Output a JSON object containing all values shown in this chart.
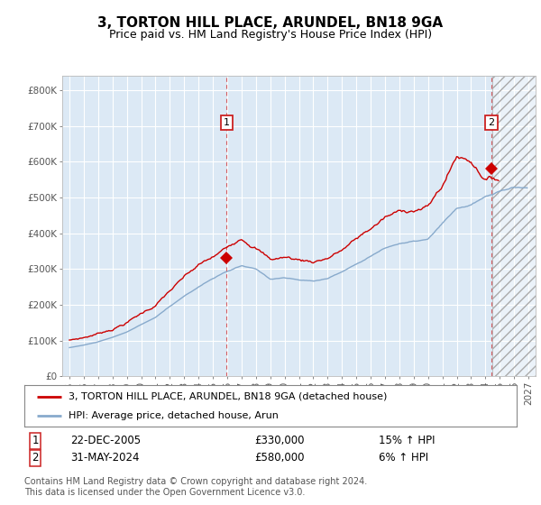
{
  "title": "3, TORTON HILL PLACE, ARUNDEL, BN18 9GA",
  "subtitle": "Price paid vs. HM Land Registry's House Price Index (HPI)",
  "ylabel_ticks": [
    "£0",
    "£100K",
    "£200K",
    "£300K",
    "£400K",
    "£500K",
    "£600K",
    "£700K",
    "£800K"
  ],
  "ytick_values": [
    0,
    100000,
    200000,
    300000,
    400000,
    500000,
    600000,
    700000,
    800000
  ],
  "ylim": [
    0,
    840000
  ],
  "xlim_start": 1994.5,
  "xlim_end": 2027.5,
  "hatch_start": 2024.5,
  "bg_color": "#dce9f5",
  "grid_color": "#ffffff",
  "sale1_x": 2005.97,
  "sale1_y": 330000,
  "sale1_label": "1",
  "sale1_date": "22-DEC-2005",
  "sale1_price": "£330,000",
  "sale1_hpi": "15% ↑ HPI",
  "sale2_x": 2024.42,
  "sale2_y": 580000,
  "sale2_label": "2",
  "sale2_date": "31-MAY-2024",
  "sale2_price": "£580,000",
  "sale2_hpi": "6% ↑ HPI",
  "legend_line1": "3, TORTON HILL PLACE, ARUNDEL, BN18 9GA (detached house)",
  "legend_line2": "HPI: Average price, detached house, Arun",
  "footer": "Contains HM Land Registry data © Crown copyright and database right 2024.\nThis data is licensed under the Open Government Licence v3.0.",
  "red_color": "#cc0000",
  "blue_color": "#88aacc",
  "title_fontsize": 11,
  "subtitle_fontsize": 9,
  "axis_fontsize": 7.5,
  "legend_fontsize": 8,
  "table_fontsize": 8.5,
  "footer_fontsize": 7
}
